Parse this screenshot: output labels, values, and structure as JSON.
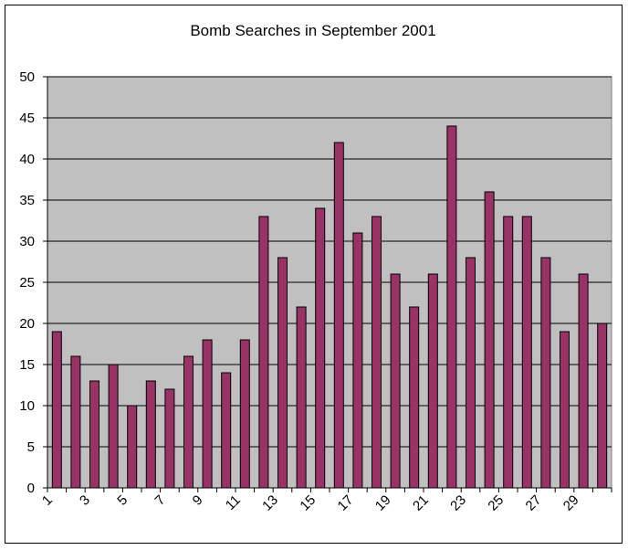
{
  "chart_data": {
    "type": "bar",
    "title": "Bomb Searches in September 2001",
    "xlabel": "",
    "ylabel": "",
    "ylim": [
      0,
      50
    ],
    "yticks": [
      0,
      5,
      10,
      15,
      20,
      25,
      30,
      35,
      40,
      45,
      50
    ],
    "categories": [
      1,
      2,
      3,
      4,
      5,
      6,
      7,
      8,
      9,
      10,
      11,
      12,
      13,
      14,
      15,
      16,
      17,
      18,
      19,
      20,
      21,
      22,
      23,
      24,
      25,
      26,
      27,
      28,
      29,
      30
    ],
    "x_tick_labels": [
      "1",
      "3",
      "5",
      "7",
      "9",
      "11",
      "13",
      "15",
      "17",
      "19",
      "21",
      "23",
      "25",
      "27",
      "29"
    ],
    "values": [
      19,
      16,
      13,
      15,
      10,
      13,
      12,
      16,
      18,
      14,
      18,
      33,
      28,
      22,
      34,
      42,
      31,
      33,
      26,
      22,
      26,
      44,
      28,
      36,
      33,
      33,
      28,
      19,
      26,
      20
    ],
    "grid": true,
    "legend": "none",
    "colors": {
      "bar": "#993366",
      "plot_background": "#c0c0c0",
      "gridline": "#000000"
    }
  }
}
